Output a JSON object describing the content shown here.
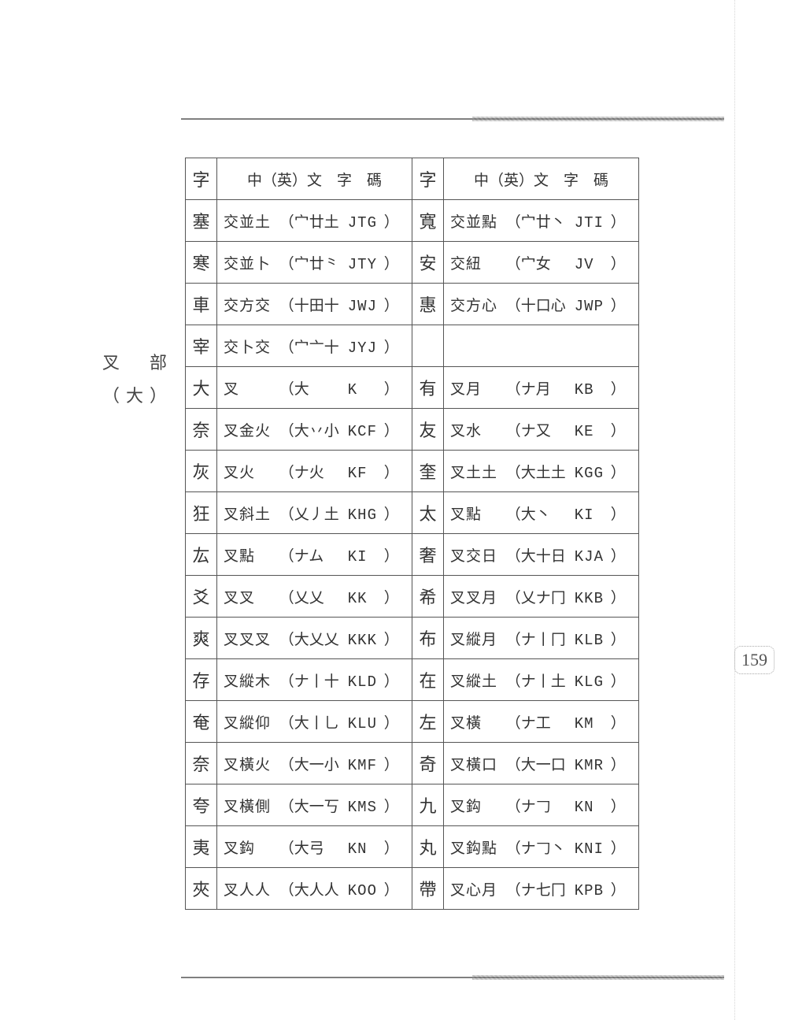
{
  "section": {
    "title_line1": "叉　部",
    "title_line2": "（大）"
  },
  "page_number": "159",
  "headers": {
    "char": "字",
    "code": "中（英）文　字　碼"
  },
  "rows": [
    {
      "l": {
        "ch": "塞",
        "name": "交並土",
        "shapes": "宀廿土",
        "code": "JTG"
      },
      "r": {
        "ch": "寬",
        "name": "交並點",
        "shapes": "宀廿丶",
        "code": "JTI"
      }
    },
    {
      "l": {
        "ch": "寒",
        "name": "交並卜",
        "shapes": "宀廿⺀",
        "code": "JTY"
      },
      "r": {
        "ch": "安",
        "name": "交紐",
        "shapes": "宀女",
        "code": "JV"
      }
    },
    {
      "l": {
        "ch": "車",
        "name": "交方交",
        "shapes": "十田十",
        "code": "JWJ"
      },
      "r": {
        "ch": "惠",
        "name": "交方心",
        "shapes": "十口心",
        "code": "JWP"
      }
    },
    {
      "l": {
        "ch": "宰",
        "name": "交卜交",
        "shapes": "宀亠十",
        "code": "JYJ"
      },
      "r": null
    },
    {
      "divider": true,
      "l": {
        "ch": "大",
        "name": "叉",
        "shapes": "大",
        "code": "K"
      },
      "r": {
        "ch": "有",
        "name": "叉月",
        "shapes": "ナ月",
        "code": "KB"
      }
    },
    {
      "l": {
        "ch": "奈",
        "name": "叉金火",
        "shapes": "大丷小",
        "code": "KCF"
      },
      "r": {
        "ch": "友",
        "name": "叉水",
        "shapes": "ナ又",
        "code": "KE"
      }
    },
    {
      "l": {
        "ch": "灰",
        "name": "叉火",
        "shapes": "ナ火",
        "code": "KF"
      },
      "r": {
        "ch": "奎",
        "name": "叉土土",
        "shapes": "大土土",
        "code": "KGG"
      }
    },
    {
      "l": {
        "ch": "狂",
        "name": "叉斜土",
        "shapes": "乂丿土",
        "code": "KHG"
      },
      "r": {
        "ch": "太",
        "name": "叉點",
        "shapes": "大丶",
        "code": "KI"
      }
    },
    {
      "l": {
        "ch": "厷",
        "name": "叉點",
        "shapes": "ナム",
        "code": "KI"
      },
      "r": {
        "ch": "奢",
        "name": "叉交日",
        "shapes": "大十日",
        "code": "KJA"
      }
    },
    {
      "l": {
        "ch": "爻",
        "name": "叉叉",
        "shapes": "乂乂",
        "code": "KK"
      },
      "r": {
        "ch": "希",
        "name": "叉叉月",
        "shapes": "乂ナ冂",
        "code": "KKB"
      }
    },
    {
      "l": {
        "ch": "爽",
        "name": "叉叉叉",
        "shapes": "大乂乂",
        "code": "KKK"
      },
      "r": {
        "ch": "布",
        "name": "叉縱月",
        "shapes": "ナ丨冂",
        "code": "KLB"
      }
    },
    {
      "l": {
        "ch": "存",
        "name": "叉縱木",
        "shapes": "ナ丨十",
        "code": "KLD"
      },
      "r": {
        "ch": "在",
        "name": "叉縱土",
        "shapes": "ナ丨土",
        "code": "KLG"
      }
    },
    {
      "l": {
        "ch": "奄",
        "name": "叉縱仰",
        "shapes": "大丨乚",
        "code": "KLU"
      },
      "r": {
        "ch": "左",
        "name": "叉橫",
        "shapes": "ナ工",
        "code": "KM"
      }
    },
    {
      "l": {
        "ch": "奈",
        "name": "叉橫火",
        "shapes": "大一小",
        "code": "KMF"
      },
      "r": {
        "ch": "奇",
        "name": "叉橫口",
        "shapes": "大一口",
        "code": "KMR"
      }
    },
    {
      "l": {
        "ch": "夸",
        "name": "叉橫側",
        "shapes": "大一丂",
        "code": "KMS"
      },
      "r": {
        "ch": "九",
        "name": "叉鈎",
        "shapes": "ナ𠃌",
        "code": "KN"
      }
    },
    {
      "l": {
        "ch": "夷",
        "name": "叉鈎",
        "shapes": "大弓",
        "code": "KN"
      },
      "r": {
        "ch": "丸",
        "name": "叉鈎點",
        "shapes": "ナ𠃌丶",
        "code": "KNI"
      }
    },
    {
      "l": {
        "ch": "夾",
        "name": "叉人人",
        "shapes": "大人人",
        "code": "KOO"
      },
      "r": {
        "ch": "帶",
        "name": "叉心月",
        "shapes": "ナ七冂",
        "code": "KPB"
      }
    }
  ]
}
